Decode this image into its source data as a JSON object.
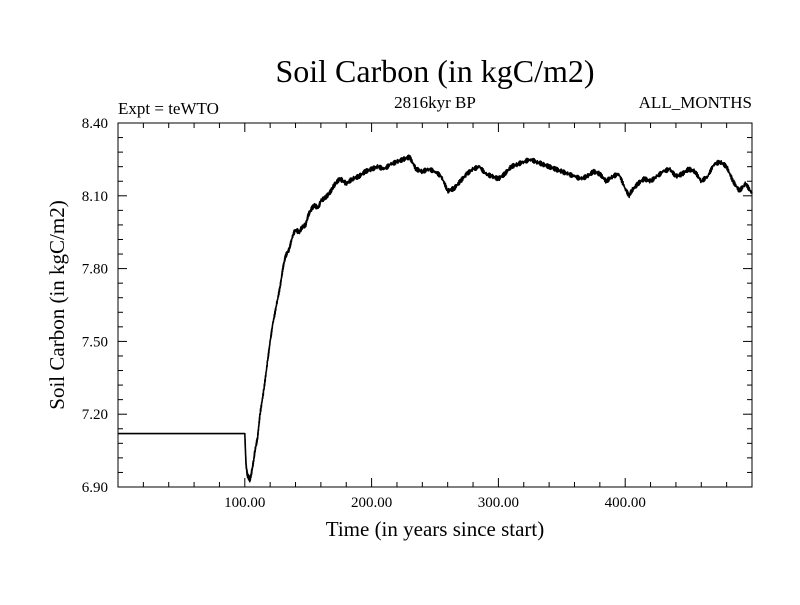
{
  "chart_data": {
    "type": "line",
    "title": "Soil Carbon (in kgC/m2)",
    "subtitle_left": "Expt = teWTO",
    "subtitle_center": "2816kyr BP",
    "subtitle_right": "ALL_MONTHS",
    "xlabel": "Time (in years since start)",
    "ylabel": "Soil Carbon (in kgC/m2)",
    "xlim": [
      0,
      500
    ],
    "ylim": [
      6.9,
      8.4
    ],
    "x_ticks": [
      {
        "value": 100,
        "label": "100.00"
      },
      {
        "value": 200,
        "label": "200.00"
      },
      {
        "value": 300,
        "label": "300.00"
      },
      {
        "value": 400,
        "label": "400.00"
      }
    ],
    "y_ticks": [
      {
        "value": 6.9,
        "label": "6.90"
      },
      {
        "value": 7.2,
        "label": "7.20"
      },
      {
        "value": 7.5,
        "label": "7.50"
      },
      {
        "value": 7.8,
        "label": "7.80"
      },
      {
        "value": 8.1,
        "label": "8.10"
      },
      {
        "value": 8.4,
        "label": "8.40"
      }
    ],
    "grid": false,
    "series": [
      {
        "name": "Soil Carbon",
        "color": "#000000",
        "x": [
          0,
          100,
          100.5,
          101,
          102,
          103,
          104,
          105,
          106,
          107,
          108,
          110,
          112,
          115,
          118,
          120,
          122,
          125,
          128,
          130,
          132,
          135,
          138,
          140,
          143,
          145,
          148,
          150,
          153,
          155,
          158,
          160,
          163,
          165,
          168,
          170,
          173,
          175,
          178,
          180,
          185,
          190,
          195,
          200,
          205,
          210,
          215,
          220,
          225,
          230,
          235,
          240,
          245,
          250,
          255,
          260,
          265,
          270,
          275,
          280,
          285,
          290,
          295,
          300,
          305,
          310,
          315,
          320,
          325,
          330,
          335,
          340,
          345,
          350,
          355,
          360,
          365,
          370,
          375,
          380,
          385,
          390,
          395,
          400,
          403,
          405,
          410,
          415,
          420,
          425,
          430,
          435,
          440,
          445,
          450,
          455,
          460,
          465,
          470,
          475,
          480,
          485,
          490,
          495,
          500
        ],
        "values": [
          7.12,
          7.12,
          7.05,
          6.99,
          6.95,
          6.94,
          6.93,
          6.95,
          6.98,
          7.01,
          7.05,
          7.1,
          7.2,
          7.3,
          7.42,
          7.5,
          7.57,
          7.65,
          7.73,
          7.8,
          7.85,
          7.88,
          7.94,
          7.96,
          7.95,
          7.97,
          7.98,
          8.02,
          8.05,
          8.06,
          8.05,
          8.08,
          8.09,
          8.1,
          8.12,
          8.14,
          8.16,
          8.17,
          8.16,
          8.15,
          8.17,
          8.18,
          8.2,
          8.21,
          8.22,
          8.21,
          8.23,
          8.24,
          8.25,
          8.26,
          8.21,
          8.2,
          8.21,
          8.2,
          8.18,
          8.12,
          8.13,
          8.16,
          8.19,
          8.21,
          8.22,
          8.19,
          8.18,
          8.17,
          8.19,
          8.22,
          8.23,
          8.24,
          8.25,
          8.24,
          8.23,
          8.22,
          8.21,
          8.2,
          8.19,
          8.18,
          8.17,
          8.18,
          8.2,
          8.19,
          8.16,
          8.18,
          8.19,
          8.13,
          8.1,
          8.12,
          8.15,
          8.17,
          8.16,
          8.18,
          8.2,
          8.21,
          8.18,
          8.19,
          8.21,
          8.2,
          8.16,
          8.18,
          8.23,
          8.24,
          8.22,
          8.16,
          8.12,
          8.15,
          8.11
        ]
      }
    ]
  }
}
